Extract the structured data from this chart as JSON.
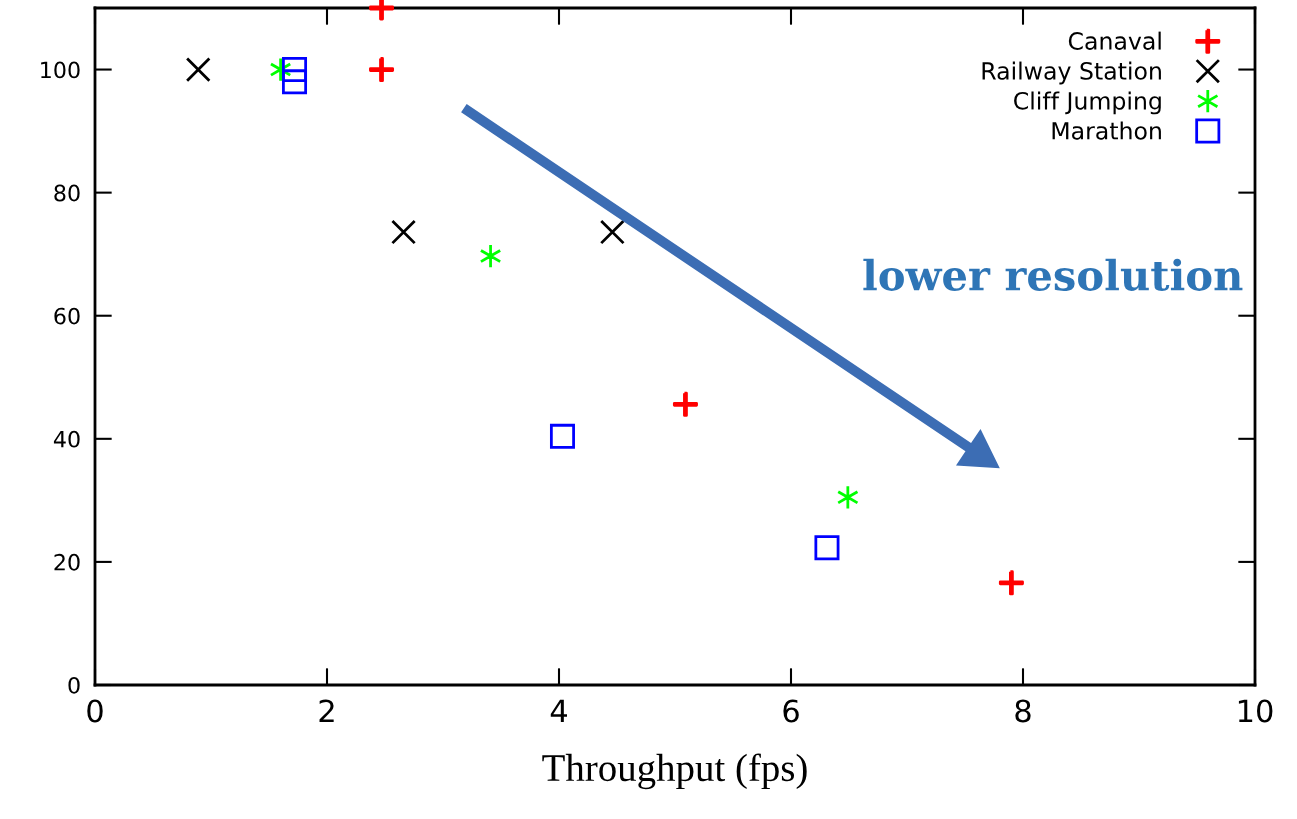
{
  "chart_data": {
    "type": "scatter",
    "xlabel": "Throughput (fps)",
    "xlim": [
      0,
      10
    ],
    "xticks": [
      0,
      2,
      4,
      6,
      8,
      10
    ],
    "ylim": [
      0,
      110
    ],
    "yticks": [
      0,
      20,
      40,
      60,
      80,
      100
    ],
    "grid": false,
    "legend": "top right",
    "series": [
      {
        "name": "Canaval",
        "color": "#ff0000",
        "x": [
          2.47,
          2.47,
          5.09,
          7.9
        ],
        "values": [
          110,
          100,
          45.6,
          16.6
        ]
      },
      {
        "name": "Railway Station",
        "color": "#000000",
        "x": [
          0.89,
          2.66,
          4.46
        ],
        "values": [
          100,
          73.6,
          73.6
        ]
      },
      {
        "name": "Cliff Jumping",
        "color": "#00ff00",
        "x": [
          1.6,
          3.41,
          6.49
        ],
        "values": [
          100,
          69.7,
          30.5
        ]
      },
      {
        "name": "Marathon",
        "color": "#0000ff",
        "x": [
          1.72,
          1.72,
          4.03,
          6.31
        ],
        "values": [
          100,
          98,
          40.4,
          22.3
        ]
      }
    ],
    "annotations": [
      "lower resolution"
    ]
  }
}
